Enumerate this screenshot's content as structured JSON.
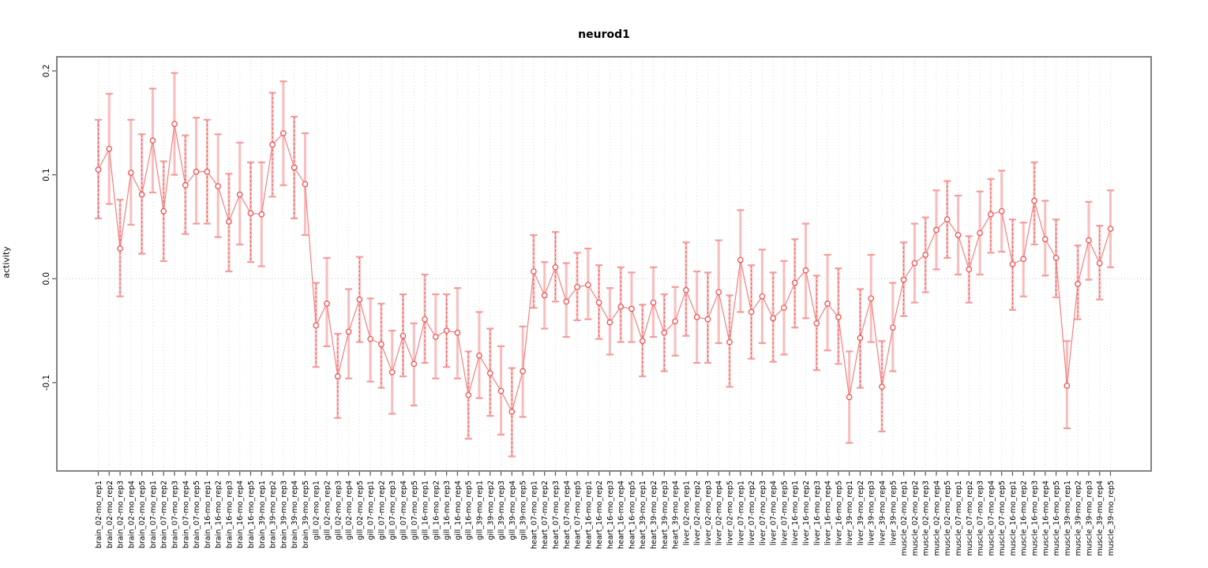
{
  "chart_data": {
    "type": "line",
    "title": "neurod1",
    "xlabel": "",
    "ylabel": "activity",
    "ylim": [
      -0.185,
      0.214
    ],
    "yticks": [
      0.2,
      0.1,
      0.0,
      -0.1
    ],
    "ytick_labels": [
      "0.2",
      "0.1",
      "0.0",
      "-0.1"
    ],
    "grid": {
      "vertical_per_sample": true,
      "horizontal_zero_line": true,
      "style": "dotted"
    },
    "legend": "none",
    "points_style": "open circles connected by lines with vertical error bars and caps",
    "samples": [
      {
        "label": "brain_02-mo_rep1",
        "mean": 0.105,
        "lo": 0.058,
        "hi": 0.153
      },
      {
        "label": "brain_02-mo_rep2",
        "mean": 0.125,
        "lo": 0.072,
        "hi": 0.178
      },
      {
        "label": "brain_02-mo_rep3",
        "mean": 0.029,
        "lo": -0.017,
        "hi": 0.076
      },
      {
        "label": "brain_02-mo_rep4",
        "mean": 0.102,
        "lo": 0.052,
        "hi": 0.153
      },
      {
        "label": "brain_02-mo_rep5",
        "mean": 0.081,
        "lo": 0.024,
        "hi": 0.139
      },
      {
        "label": "brain_07-mo_rep1",
        "mean": 0.133,
        "lo": 0.083,
        "hi": 0.183
      },
      {
        "label": "brain_07-mo_rep2",
        "mean": 0.065,
        "lo": 0.017,
        "hi": 0.113
      },
      {
        "label": "brain_07-mo_rep3",
        "mean": 0.149,
        "lo": 0.1,
        "hi": 0.198
      },
      {
        "label": "brain_07-mo_rep4",
        "mean": 0.09,
        "lo": 0.043,
        "hi": 0.138
      },
      {
        "label": "brain_07-mo_rep5",
        "mean": 0.103,
        "lo": 0.053,
        "hi": 0.155
      },
      {
        "label": "brain_16-mo_rep1",
        "mean": 0.103,
        "lo": 0.053,
        "hi": 0.153
      },
      {
        "label": "brain_16-mo_rep2",
        "mean": 0.089,
        "lo": 0.04,
        "hi": 0.139
      },
      {
        "label": "brain_16-mo_rep3",
        "mean": 0.055,
        "lo": 0.007,
        "hi": 0.101
      },
      {
        "label": "brain_16-mo_rep4",
        "mean": 0.081,
        "lo": 0.033,
        "hi": 0.131
      },
      {
        "label": "brain_16-mo_rep5",
        "mean": 0.063,
        "lo": 0.016,
        "hi": 0.112
      },
      {
        "label": "brain_39-mo_rep1",
        "mean": 0.062,
        "lo": 0.012,
        "hi": 0.112
      },
      {
        "label": "brain_39-mo_rep2",
        "mean": 0.129,
        "lo": 0.079,
        "hi": 0.179
      },
      {
        "label": "brain_39-mo_rep3",
        "mean": 0.14,
        "lo": 0.09,
        "hi": 0.19
      },
      {
        "label": "brain_39-mo_rep4",
        "mean": 0.107,
        "lo": 0.058,
        "hi": 0.156
      },
      {
        "label": "brain_39-mo_rep5",
        "mean": 0.091,
        "lo": 0.042,
        "hi": 0.14
      },
      {
        "label": "gill_02-mo_rep1",
        "mean": -0.045,
        "lo": -0.085,
        "hi": -0.004
      },
      {
        "label": "gill_02-mo_rep2",
        "mean": -0.024,
        "lo": -0.065,
        "hi": 0.02
      },
      {
        "label": "gill_02-mo_rep3",
        "mean": -0.094,
        "lo": -0.134,
        "hi": -0.053
      },
      {
        "label": "gill_02-mo_rep4",
        "mean": -0.051,
        "lo": -0.096,
        "hi": -0.01
      },
      {
        "label": "gill_02-mo_rep5",
        "mean": -0.02,
        "lo": -0.061,
        "hi": 0.021
      },
      {
        "label": "gill_07-mo_rep1",
        "mean": -0.058,
        "lo": -0.099,
        "hi": -0.019
      },
      {
        "label": "gill_07-mo_rep2",
        "mean": -0.063,
        "lo": -0.105,
        "hi": -0.024
      },
      {
        "label": "gill_07-mo_rep3",
        "mean": -0.09,
        "lo": -0.13,
        "hi": -0.05
      },
      {
        "label": "gill_07-mo_rep4",
        "mean": -0.055,
        "lo": -0.094,
        "hi": -0.015
      },
      {
        "label": "gill_07-mo_rep5",
        "mean": -0.082,
        "lo": -0.122,
        "hi": -0.043
      },
      {
        "label": "gill_16-mo_rep1",
        "mean": -0.039,
        "lo": -0.081,
        "hi": 0.004
      },
      {
        "label": "gill_16-mo_rep2",
        "mean": -0.056,
        "lo": -0.096,
        "hi": -0.015
      },
      {
        "label": "gill_16-mo_rep3",
        "mean": -0.05,
        "lo": -0.085,
        "hi": -0.015
      },
      {
        "label": "gill_16-mo_rep4",
        "mean": -0.052,
        "lo": -0.096,
        "hi": -0.009
      },
      {
        "label": "gill_16-mo_rep5",
        "mean": -0.112,
        "lo": -0.154,
        "hi": -0.07
      },
      {
        "label": "gill_39-mo_rep1",
        "mean": -0.074,
        "lo": -0.115,
        "hi": -0.032
      },
      {
        "label": "gill_39-mo_rep2",
        "mean": -0.091,
        "lo": -0.132,
        "hi": -0.048
      },
      {
        "label": "gill_39-mo_rep3",
        "mean": -0.108,
        "lo": -0.15,
        "hi": -0.065
      },
      {
        "label": "gill_39-mo_rep4",
        "mean": -0.128,
        "lo": -0.171,
        "hi": -0.086
      },
      {
        "label": "gill_39-mo_rep5",
        "mean": -0.089,
        "lo": -0.133,
        "hi": -0.046
      },
      {
        "label": "heart_07-mo_rep1",
        "mean": 0.007,
        "lo": -0.028,
        "hi": 0.042
      },
      {
        "label": "heart_07-mo_rep2",
        "mean": -0.016,
        "lo": -0.048,
        "hi": 0.016
      },
      {
        "label": "heart_07-mo_rep3",
        "mean": 0.011,
        "lo": -0.022,
        "hi": 0.045
      },
      {
        "label": "heart_07-mo_rep4",
        "mean": -0.022,
        "lo": -0.056,
        "hi": 0.015
      },
      {
        "label": "heart_07-mo_rep5",
        "mean": -0.008,
        "lo": -0.04,
        "hi": 0.025
      },
      {
        "label": "heart_16-mo_rep1",
        "mean": -0.006,
        "lo": -0.039,
        "hi": 0.029
      },
      {
        "label": "heart_16-mo_rep2",
        "mean": -0.023,
        "lo": -0.058,
        "hi": 0.013
      },
      {
        "label": "heart_16-mo_rep3",
        "mean": -0.042,
        "lo": -0.073,
        "hi": -0.009
      },
      {
        "label": "heart_16-mo_rep4",
        "mean": -0.027,
        "lo": -0.061,
        "hi": 0.011
      },
      {
        "label": "heart_16-mo_rep5",
        "mean": -0.029,
        "lo": -0.061,
        "hi": 0.006
      },
      {
        "label": "heart_39-mo_rep1",
        "mean": -0.06,
        "lo": -0.094,
        "hi": -0.025
      },
      {
        "label": "heart_39-mo_rep2",
        "mean": -0.023,
        "lo": -0.056,
        "hi": 0.011
      },
      {
        "label": "heart_39-mo_rep3",
        "mean": -0.052,
        "lo": -0.089,
        "hi": -0.015
      },
      {
        "label": "heart_39-mo_rep4",
        "mean": -0.041,
        "lo": -0.074,
        "hi": -0.008
      },
      {
        "label": "liver_02-mo_rep1",
        "mean": -0.011,
        "lo": -0.055,
        "hi": 0.035
      },
      {
        "label": "liver_02-mo_rep2",
        "mean": -0.037,
        "lo": -0.081,
        "hi": 0.007
      },
      {
        "label": "liver_02-mo_rep3",
        "mean": -0.039,
        "lo": -0.081,
        "hi": 0.006
      },
      {
        "label": "liver_02-mo_rep4",
        "mean": -0.013,
        "lo": -0.062,
        "hi": 0.037
      },
      {
        "label": "liver_02-mo_rep5",
        "mean": -0.061,
        "lo": -0.104,
        "hi": -0.016
      },
      {
        "label": "liver_07-mo_rep1",
        "mean": 0.018,
        "lo": -0.032,
        "hi": 0.066
      },
      {
        "label": "liver_07-mo_rep2",
        "mean": -0.032,
        "lo": -0.077,
        "hi": 0.013
      },
      {
        "label": "liver_07-mo_rep3",
        "mean": -0.017,
        "lo": -0.062,
        "hi": 0.028
      },
      {
        "label": "liver_07-mo_rep4",
        "mean": -0.038,
        "lo": -0.08,
        "hi": 0.006
      },
      {
        "label": "liver_07-mo_rep5",
        "mean": -0.028,
        "lo": -0.073,
        "hi": 0.017
      },
      {
        "label": "liver_16-mo_rep1",
        "mean": -0.004,
        "lo": -0.047,
        "hi": 0.038
      },
      {
        "label": "liver_16-mo_rep2",
        "mean": 0.008,
        "lo": -0.038,
        "hi": 0.053
      },
      {
        "label": "liver_16-mo_rep3",
        "mean": -0.043,
        "lo": -0.088,
        "hi": 0.003
      },
      {
        "label": "liver_16-mo_rep4",
        "mean": -0.024,
        "lo": -0.069,
        "hi": 0.023
      },
      {
        "label": "liver_16-mo_rep5",
        "mean": -0.037,
        "lo": -0.082,
        "hi": 0.01
      },
      {
        "label": "liver_39-mo_rep1",
        "mean": -0.114,
        "lo": -0.158,
        "hi": -0.07
      },
      {
        "label": "liver_39-mo_rep2",
        "mean": -0.057,
        "lo": -0.105,
        "hi": -0.01
      },
      {
        "label": "liver_39-mo_rep3",
        "mean": -0.019,
        "lo": -0.061,
        "hi": 0.023
      },
      {
        "label": "liver_39-mo_rep4",
        "mean": -0.104,
        "lo": -0.147,
        "hi": -0.06
      },
      {
        "label": "liver_39-mo_rep5",
        "mean": -0.047,
        "lo": -0.089,
        "hi": -0.004
      },
      {
        "label": "muscle_02-mo_rep1",
        "mean": -0.001,
        "lo": -0.036,
        "hi": 0.035
      },
      {
        "label": "muscle_02-mo_rep2",
        "mean": 0.015,
        "lo": -0.023,
        "hi": 0.053
      },
      {
        "label": "muscle_02-mo_rep3",
        "mean": 0.023,
        "lo": -0.013,
        "hi": 0.059
      },
      {
        "label": "muscle_02-mo_rep4",
        "mean": 0.047,
        "lo": 0.009,
        "hi": 0.085
      },
      {
        "label": "muscle_02-mo_rep5",
        "mean": 0.057,
        "lo": 0.02,
        "hi": 0.094
      },
      {
        "label": "muscle_07-mo_rep1",
        "mean": 0.042,
        "lo": 0.004,
        "hi": 0.08
      },
      {
        "label": "muscle_07-mo_rep2",
        "mean": 0.009,
        "lo": -0.023,
        "hi": 0.041
      },
      {
        "label": "muscle_07-mo_rep3",
        "mean": 0.044,
        "lo": 0.004,
        "hi": 0.084
      },
      {
        "label": "muscle_07-mo_rep4",
        "mean": 0.062,
        "lo": 0.025,
        "hi": 0.096
      },
      {
        "label": "muscle_07-mo_rep5",
        "mean": 0.065,
        "lo": 0.026,
        "hi": 0.104
      },
      {
        "label": "muscle_16-mo_rep1",
        "mean": 0.014,
        "lo": -0.03,
        "hi": 0.057
      },
      {
        "label": "muscle_16-mo_rep2",
        "mean": 0.019,
        "lo": -0.017,
        "hi": 0.054
      },
      {
        "label": "muscle_16-mo_rep3",
        "mean": 0.075,
        "lo": 0.033,
        "hi": 0.112
      },
      {
        "label": "muscle_16-mo_rep4",
        "mean": 0.038,
        "lo": 0.003,
        "hi": 0.075
      },
      {
        "label": "muscle_16-mo_rep5",
        "mean": 0.02,
        "lo": -0.018,
        "hi": 0.057
      },
      {
        "label": "muscle_39-mo_rep1",
        "mean": -0.103,
        "lo": -0.144,
        "hi": -0.06
      },
      {
        "label": "muscle_39-mo_rep2",
        "mean": -0.005,
        "lo": -0.039,
        "hi": 0.032
      },
      {
        "label": "muscle_39-mo_rep3",
        "mean": 0.037,
        "lo": -0.001,
        "hi": 0.074
      },
      {
        "label": "muscle_39-mo_rep4",
        "mean": 0.015,
        "lo": -0.02,
        "hi": 0.051
      },
      {
        "label": "muscle_39-mo_rep5",
        "mean": 0.048,
        "lo": 0.011,
        "hi": 0.085
      }
    ]
  },
  "colors": {
    "point_stroke": "#f05050",
    "connect_line": "#f38080",
    "bar_pink": "#f9b2b2",
    "bar_dash": "#e85555",
    "cap": "#f59b9b",
    "grid_vertical": "#dcdcdc",
    "zero_line": "#c9c9c9",
    "box_border": "#828282",
    "tick": "#555555",
    "text": "#000000"
  }
}
